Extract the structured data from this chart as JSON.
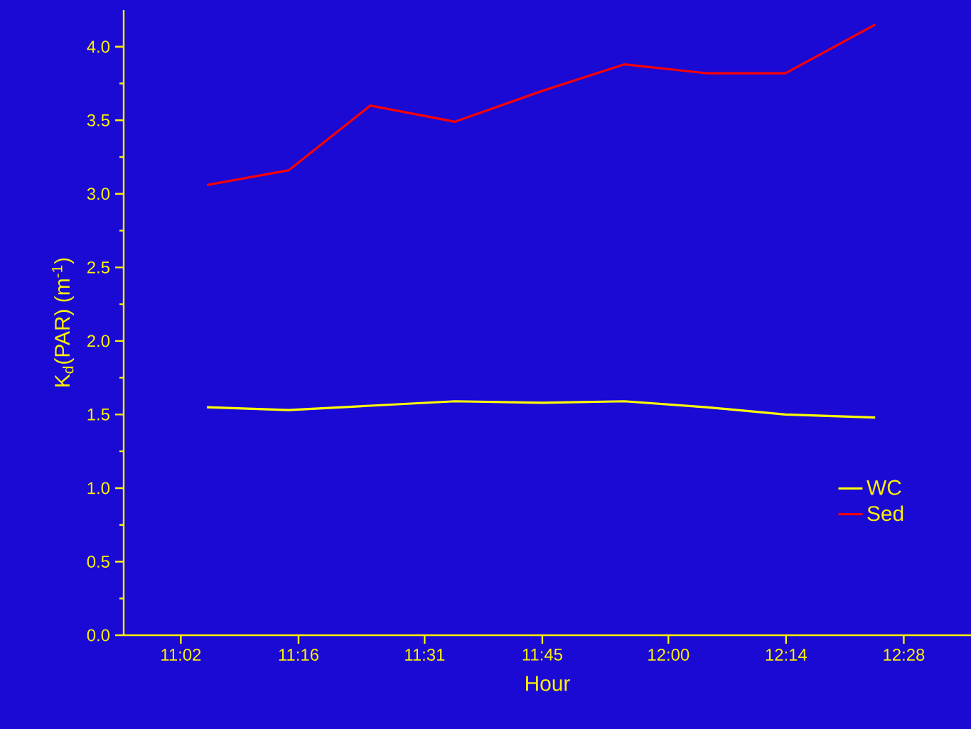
{
  "chart_data": {
    "type": "line",
    "xlabel": "Hour",
    "ylabel": "K$_{d}$(PAR) (m$^{-1}$)",
    "xlim": [
      10.92,
      12.6
    ],
    "ylim": [
      0,
      4.25
    ],
    "xticks": [
      {
        "value": 11.0333,
        "label": "11:02"
      },
      {
        "value": 11.2667,
        "label": "11:16"
      },
      {
        "value": 11.5167,
        "label": "11:31"
      },
      {
        "value": 11.75,
        "label": "11:45"
      },
      {
        "value": 12.0,
        "label": "12:00"
      },
      {
        "value": 12.2333,
        "label": "12:14"
      },
      {
        "value": 12.4667,
        "label": "12:28"
      }
    ],
    "yticks": [
      {
        "value": 0,
        "label": "0.0"
      },
      {
        "value": 0.5,
        "label": "0.5"
      },
      {
        "value": 1,
        "label": "1.0"
      },
      {
        "value": 1.5,
        "label": "1.5"
      },
      {
        "value": 2,
        "label": "2.0"
      },
      {
        "value": 2.5,
        "label": "2.5"
      },
      {
        "value": 3,
        "label": "3.0"
      },
      {
        "value": 3.5,
        "label": "3.5"
      },
      {
        "value": 4,
        "label": "4.0"
      }
    ],
    "x": [
      11.085,
      11.247,
      11.409,
      11.577,
      11.75,
      11.913,
      12.075,
      12.232,
      12.41
    ],
    "legend": "bottom right",
    "grid": false,
    "marker": "none",
    "line_style": "solid",
    "series": [
      {
        "name": "WC",
        "color": "#ffff00",
        "values": [
          1.55,
          1.53,
          1.56,
          1.59,
          1.58,
          1.59,
          1.55,
          1.5,
          1.48
        ]
      },
      {
        "name": "Sed",
        "color": "#ff0000",
        "values": [
          3.06,
          3.16,
          3.6,
          3.49,
          3.7,
          3.88,
          3.82,
          3.82,
          4.15
        ]
      }
    ]
  }
}
